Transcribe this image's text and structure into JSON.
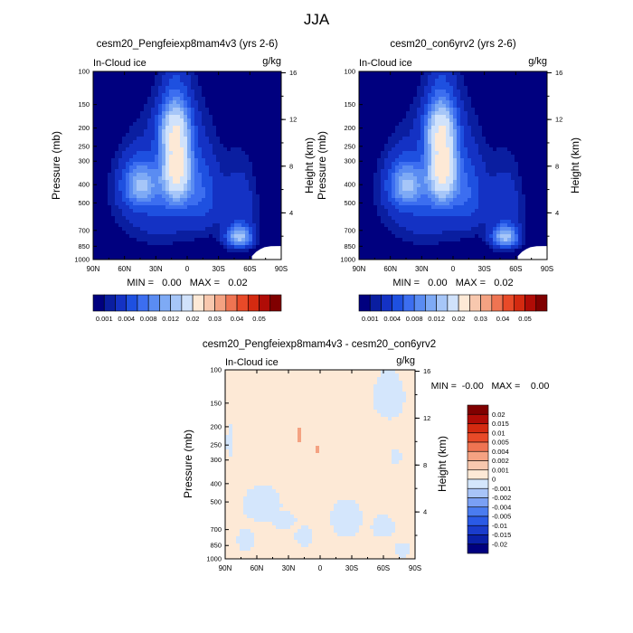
{
  "page_title": "JJA",
  "colors": {
    "seq": [
      "#00007f",
      "#0a1ea0",
      "#1432c4",
      "#1e50e0",
      "#3c6ef0",
      "#5a8cf2",
      "#7eaaf5",
      "#a6c6f8",
      "#d0e2fb",
      "#fde9d6",
      "#f8c8ae",
      "#f4a282",
      "#ef7452",
      "#e84a28",
      "#d42a10",
      "#b00c06",
      "#800000"
    ],
    "div": [
      "#00007f",
      "#0a20a8",
      "#1a3ccc",
      "#2a5ae6",
      "#4a7cf0",
      "#7aa0f4",
      "#a8c4f8",
      "#d4e6fc",
      "#fde9d6",
      "#f8c8ae",
      "#f4a282",
      "#ef7452",
      "#e84a28",
      "#d42a10",
      "#b00c06",
      "#800000"
    ]
  },
  "chart_data": [
    {
      "type": "heatmap",
      "panel": "left",
      "title": "cesm20_Pengfeiexp8mam4v3 (yrs 2-6)",
      "left_label": "In-Cloud ice",
      "right_label": "g/kg",
      "ylabel": "Pressure (mb)",
      "ylabel_right": "Height (km)",
      "x_ticks": [
        "90N",
        "60N",
        "30N",
        "0",
        "30S",
        "60S",
        "90S"
      ],
      "xlim": [
        90,
        -90
      ],
      "y_ticks": [
        100,
        150,
        200,
        250,
        300,
        400,
        500,
        700,
        850,
        1000
      ],
      "ylim": [
        100,
        1000
      ],
      "y2_ticks": [
        4,
        8,
        12,
        16
      ],
      "stats_text": "MIN =   0.00   MAX =   0.02",
      "colorbar_labels": [
        "0.001",
        "0.004",
        "0.008",
        "0.012",
        "0.02",
        "0.03",
        "0.04",
        "0.05"
      ],
      "features": [
        {
          "lat": 10,
          "p": 320,
          "dlat": 13,
          "dp": 150,
          "value": 0.021
        },
        {
          "lat": 13,
          "p": 200,
          "dlat": 15,
          "dp": 60,
          "value": 0.009
        },
        {
          "lat": 45,
          "p": 400,
          "dlat": 17,
          "dp": 110,
          "value": 0.01
        },
        {
          "lat": 25,
          "p": 500,
          "dlat": 40,
          "dp": 280,
          "value": 0.004
        },
        {
          "lat": -15,
          "p": 440,
          "dlat": 16,
          "dp": 210,
          "value": 0.0045
        },
        {
          "lat": -50,
          "p": 760,
          "dlat": 12,
          "dp": 95,
          "value": 0.0125
        },
        {
          "lat": -50,
          "p": 520,
          "dlat": 16,
          "dp": 230,
          "value": 0.0035
        }
      ]
    },
    {
      "type": "heatmap",
      "panel": "right",
      "title": "cesm20_con6yrv2 (yrs 2-6)",
      "left_label": "In-Cloud ice",
      "right_label": "g/kg",
      "ylabel": "Pressure (mb)",
      "ylabel_right": "Height (km)",
      "x_ticks": [
        "90N",
        "60N",
        "30N",
        "0",
        "30S",
        "60S",
        "90S"
      ],
      "xlim": [
        90,
        -90
      ],
      "y_ticks": [
        100,
        150,
        200,
        250,
        300,
        400,
        500,
        700,
        850,
        1000
      ],
      "ylim": [
        100,
        1000
      ],
      "y2_ticks": [
        4,
        8,
        12,
        16
      ],
      "stats_text": "MIN =   0.00   MAX =   0.02",
      "colorbar_labels": [
        "0.001",
        "0.004",
        "0.008",
        "0.012",
        "0.02",
        "0.03",
        "0.04",
        "0.05"
      ],
      "features": [
        {
          "lat": 10,
          "p": 320,
          "dlat": 13,
          "dp": 150,
          "value": 0.021
        },
        {
          "lat": 13,
          "p": 200,
          "dlat": 15,
          "dp": 60,
          "value": 0.009
        },
        {
          "lat": 45,
          "p": 400,
          "dlat": 17,
          "dp": 110,
          "value": 0.01
        },
        {
          "lat": 25,
          "p": 500,
          "dlat": 40,
          "dp": 280,
          "value": 0.004
        },
        {
          "lat": -15,
          "p": 440,
          "dlat": 16,
          "dp": 210,
          "value": 0.0045
        },
        {
          "lat": -50,
          "p": 760,
          "dlat": 12,
          "dp": 95,
          "value": 0.0125
        },
        {
          "lat": -50,
          "p": 520,
          "dlat": 16,
          "dp": 230,
          "value": 0.0035
        }
      ]
    },
    {
      "type": "heatmap",
      "panel": "diff",
      "title": "cesm20_Pengfeiexp8mam4v3 - cesm20_con6yrv2",
      "left_label": "In-Cloud ice",
      "right_label": "g/kg",
      "ylabel": "Pressure (mb)",
      "ylabel_right": "Height (km)",
      "x_ticks": [
        "90N",
        "60N",
        "30N",
        "0",
        "30S",
        "60S",
        "90S"
      ],
      "xlim": [
        90,
        -90
      ],
      "y_ticks": [
        100,
        150,
        200,
        250,
        300,
        400,
        500,
        700,
        850,
        1000
      ],
      "ylim": [
        100,
        1000
      ],
      "y2_ticks": [
        4,
        8,
        12,
        16
      ],
      "stats_text": "MIN =  -0.00   MAX =    0.00",
      "colorbar_labels": [
        "0.02",
        "0.015",
        "0.01",
        "0.005",
        "0.004",
        "0.002",
        "0.001",
        "0",
        "-0.001",
        "-0.002",
        "-0.004",
        "-0.005",
        "-0.01",
        "-0.015",
        "-0.02"
      ],
      "background_value": 0.0005,
      "anomalies": [
        {
          "lat": 20,
          "p": 220,
          "dlat": 3,
          "dp": 22,
          "value": 0.0025
        },
        {
          "lat": 2,
          "p": 265,
          "dlat": 2,
          "dp": 10,
          "value": 0.0025
        },
        {
          "lat": -65,
          "p": 140,
          "dlat": 18,
          "dp": 50,
          "value": -0.0005
        },
        {
          "lat": -72,
          "p": 290,
          "dlat": 6,
          "dp": 35,
          "value": -0.0005
        },
        {
          "lat": 55,
          "p": 520,
          "dlat": 22,
          "dp": 140,
          "value": -0.0005
        },
        {
          "lat": 70,
          "p": 800,
          "dlat": 10,
          "dp": 130,
          "value": -0.0005
        },
        {
          "lat": 35,
          "p": 620,
          "dlat": 15,
          "dp": 80,
          "value": -0.0005
        },
        {
          "lat": 15,
          "p": 760,
          "dlat": 10,
          "dp": 110,
          "value": -0.0005
        },
        {
          "lat": -25,
          "p": 620,
          "dlat": 18,
          "dp": 170,
          "value": -0.0005
        },
        {
          "lat": -60,
          "p": 680,
          "dlat": 14,
          "dp": 110,
          "value": -0.0005
        },
        {
          "lat": -78,
          "p": 900,
          "dlat": 10,
          "dp": 90,
          "value": -0.0005
        },
        {
          "lat": 86,
          "p": 240,
          "dlat": 3,
          "dp": 60,
          "value": -0.0005
        }
      ]
    }
  ]
}
